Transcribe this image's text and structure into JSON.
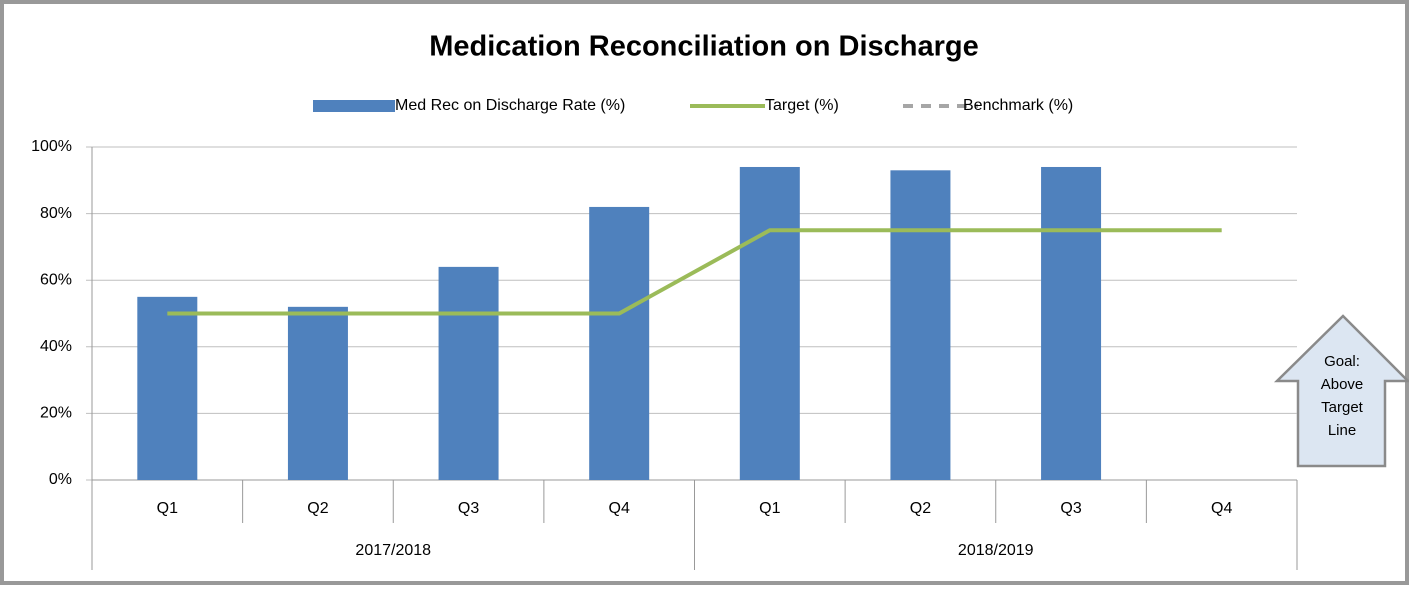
{
  "chart_data": {
    "type": "bar",
    "title": "Medication Reconciliation on Discharge",
    "categories": [
      "Q1",
      "Q2",
      "Q3",
      "Q4",
      "Q1",
      "Q2",
      "Q3",
      "Q4"
    ],
    "groups": [
      {
        "label": "2017/2018",
        "span": 4
      },
      {
        "label": "2018/2019",
        "span": 4
      }
    ],
    "series": [
      {
        "name": "Med Rec on Discharge Rate (%)",
        "type": "bar",
        "color": "#4f81bd",
        "values": [
          55,
          52,
          64,
          82,
          94,
          93,
          94,
          null
        ]
      },
      {
        "name": "Target (%)",
        "type": "line",
        "color": "#9bbb59",
        "values": [
          50,
          50,
          50,
          50,
          75,
          75,
          75,
          75
        ]
      },
      {
        "name": "Benchmark (%)",
        "type": "line",
        "color": "#a6a6a6",
        "dashed": true,
        "values": [
          null,
          null,
          null,
          null,
          null,
          null,
          null,
          null
        ]
      }
    ],
    "ylim": [
      0,
      100
    ],
    "yticks": [
      {
        "value": 0,
        "label": "0%"
      },
      {
        "value": 20,
        "label": "20%"
      },
      {
        "value": 40,
        "label": "40%"
      },
      {
        "value": 60,
        "label": "60%"
      },
      {
        "value": 80,
        "label": "80%"
      },
      {
        "value": 100,
        "label": "100%"
      }
    ],
    "grid": true,
    "legend": "top",
    "annotation": [
      "Goal:",
      "Above",
      "Target",
      "Line"
    ]
  }
}
